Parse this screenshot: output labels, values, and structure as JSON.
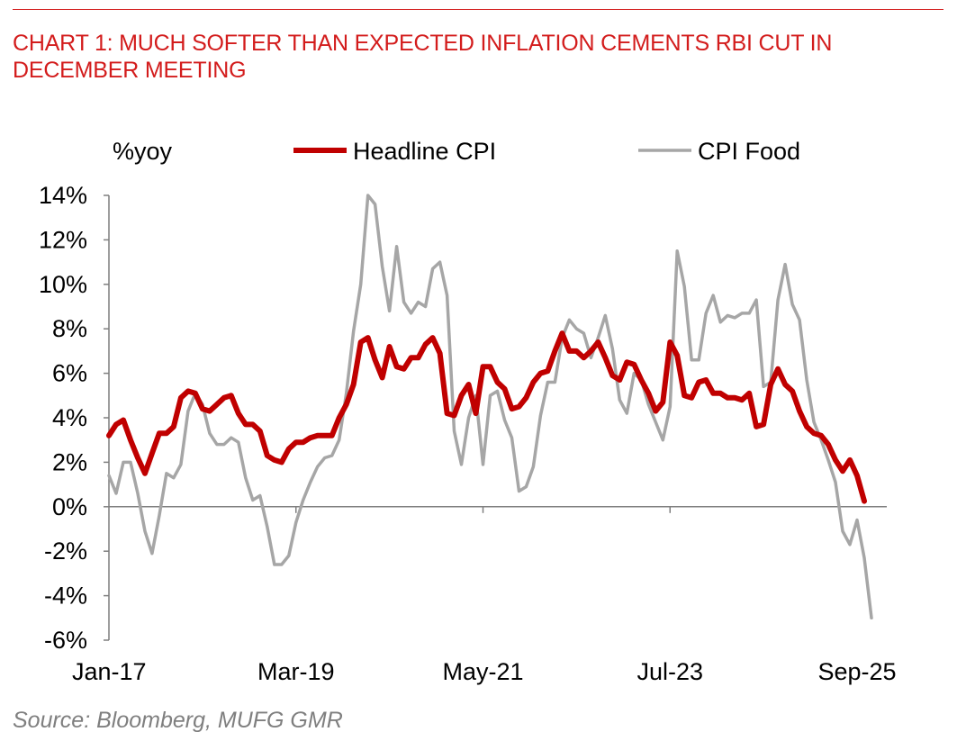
{
  "title": "CHART 1: MUCH SOFTER THAN EXPECTED INFLATION CEMENTS RBI CUT IN DECEMBER MEETING",
  "source": "Source: Bloomberg, MUFG GMR",
  "colors": {
    "title": "#d31c1c",
    "headline": "#c00000",
    "food": "#a6a6a6",
    "axis": "#7f7f7f",
    "text": "#000000"
  },
  "chart_data": {
    "type": "line",
    "ylabel": "%yoy",
    "ylim": [
      -6,
      14
    ],
    "yticks": [
      "14%",
      "12%",
      "10%",
      "8%",
      "6%",
      "4%",
      "2%",
      "0%",
      "-2%",
      "-4%",
      "-6%"
    ],
    "ytick_values": [
      14,
      12,
      10,
      8,
      6,
      4,
      2,
      0,
      -2,
      -4,
      -6
    ],
    "xticks": [
      "Jan-17",
      "Mar-19",
      "May-21",
      "Jul-23",
      "Sep-25"
    ],
    "xtick_index": [
      0,
      26,
      52,
      78,
      104
    ],
    "start_month": "Jan-17",
    "grid": false,
    "legend": "top",
    "series": [
      {
        "name": "Headline CPI",
        "color": "#c00000",
        "values": [
          3.2,
          3.7,
          3.9,
          3.0,
          2.2,
          1.5,
          2.4,
          3.3,
          3.3,
          3.6,
          4.9,
          5.2,
          5.1,
          4.4,
          4.3,
          4.6,
          4.9,
          5.0,
          4.2,
          3.7,
          3.7,
          3.4,
          2.3,
          2.1,
          2.0,
          2.6,
          2.9,
          2.9,
          3.1,
          3.2,
          3.2,
          3.2,
          4.0,
          4.6,
          5.5,
          7.4,
          7.6,
          6.6,
          5.8,
          7.2,
          6.3,
          6.2,
          6.7,
          6.7,
          7.3,
          7.6,
          6.9,
          4.2,
          4.1,
          5.0,
          5.5,
          4.2,
          6.3,
          6.3,
          5.6,
          5.3,
          4.4,
          4.5,
          4.9,
          5.6,
          6.0,
          6.1,
          7.0,
          7.8,
          7.0,
          7.0,
          6.7,
          7.0,
          7.4,
          6.7,
          5.9,
          5.7,
          6.5,
          6.4,
          5.7,
          5.1,
          4.3,
          4.7,
          7.4,
          6.8,
          5.0,
          4.9,
          5.6,
          5.7,
          5.1,
          5.1,
          4.9,
          4.9,
          4.8,
          5.1,
          3.6,
          3.7,
          5.5,
          6.2,
          5.5,
          5.2,
          4.3,
          3.6,
          3.3,
          3.2,
          2.8,
          2.1,
          1.6,
          2.1,
          1.4,
          0.25
        ]
      },
      {
        "name": "CPI Food",
        "color": "#a6a6a6",
        "values": [
          1.4,
          0.6,
          2.0,
          2.0,
          0.6,
          -1.1,
          -2.1,
          -0.4,
          1.5,
          1.3,
          1.9,
          4.3,
          5.1,
          4.6,
          3.3,
          2.8,
          2.8,
          3.1,
          2.9,
          1.3,
          0.3,
          0.5,
          -0.9,
          -2.6,
          -2.6,
          -2.2,
          -0.7,
          0.3,
          1.1,
          1.8,
          2.2,
          2.3,
          3.0,
          5.1,
          7.9,
          10.0,
          14.0,
          13.6,
          10.8,
          8.8,
          11.7,
          9.2,
          8.7,
          9.2,
          9.0,
          10.7,
          11.0,
          9.5,
          3.4,
          1.9,
          4.0,
          5.0,
          1.9,
          5.0,
          5.2,
          3.9,
          3.1,
          0.7,
          0.9,
          1.8,
          4.1,
          5.6,
          5.6,
          7.6,
          8.4,
          8.0,
          7.8,
          6.7,
          7.6,
          8.6,
          7.1,
          4.8,
          4.2,
          6.0,
          5.7,
          4.6,
          3.8,
          3.0,
          4.5,
          11.5,
          9.9,
          6.6,
          6.6,
          8.7,
          9.5,
          8.3,
          8.6,
          8.5,
          8.7,
          8.7,
          9.3,
          5.4,
          5.6,
          9.3,
          10.9,
          9.1,
          8.4,
          5.7,
          3.8,
          3.0,
          2.1,
          1.1,
          -1.1,
          -1.7,
          -0.6,
          -2.3,
          -5.0
        ]
      }
    ]
  }
}
